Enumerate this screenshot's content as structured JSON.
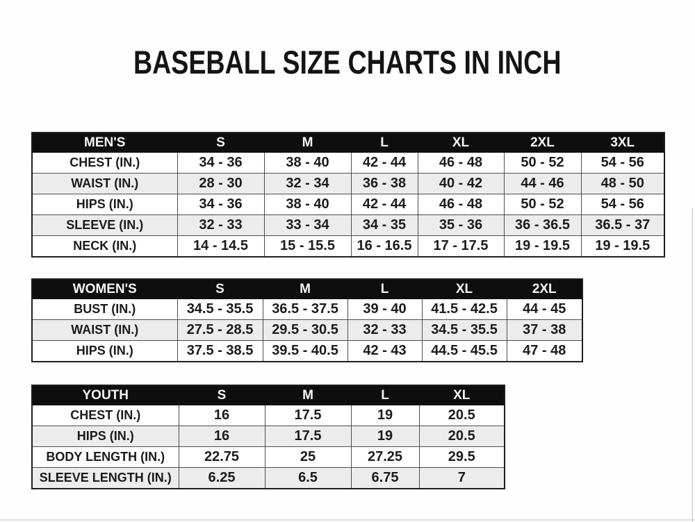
{
  "title": "BASEBALL SIZE CHARTS IN INCH",
  "tables": [
    {
      "id": "mens",
      "group_label": "MEN'S",
      "size_headers": [
        "S",
        "M",
        "L",
        "XL",
        "2XL",
        "3XL"
      ],
      "rows": [
        {
          "label": "CHEST (IN.)",
          "values": [
            "34 - 36",
            "38 - 40",
            "42 - 44",
            "46 - 48",
            "50 - 52",
            "54 - 56"
          ]
        },
        {
          "label": "WAIST (IN.)",
          "values": [
            "28 - 30",
            "32 - 34",
            "36 - 38",
            "40 - 42",
            "44 - 46",
            "48 - 50"
          ]
        },
        {
          "label": "HIPS (IN.)",
          "values": [
            "34 - 36",
            "38 - 40",
            "42 - 44",
            "46 - 48",
            "50 - 52",
            "54 - 56"
          ]
        },
        {
          "label": "SLEEVE (IN.)",
          "values": [
            "32 - 33",
            "33 - 34",
            "34 - 35",
            "35 - 36",
            "36 - 36.5",
            "36.5 - 37"
          ]
        },
        {
          "label": "NECK (IN.)",
          "values": [
            "14 - 14.5",
            "15 - 15.5",
            "16 - 16.5",
            "17 - 17.5",
            "19 - 19.5",
            "19 - 19.5"
          ]
        }
      ]
    },
    {
      "id": "womens",
      "group_label": "WOMEN'S",
      "size_headers": [
        "S",
        "M",
        "L",
        "XL",
        "2XL"
      ],
      "rows": [
        {
          "label": "BUST (IN.)",
          "values": [
            "34.5 - 35.5",
            "36.5 - 37.5",
            "39 - 40",
            "41.5 - 42.5",
            "44 - 45"
          ]
        },
        {
          "label": "WAIST (IN.)",
          "values": [
            "27.5 - 28.5",
            "29.5 - 30.5",
            "32 - 33",
            "34.5 - 35.5",
            "37 - 38"
          ]
        },
        {
          "label": "HIPS (IN.)",
          "values": [
            "37.5 - 38.5",
            "39.5 - 40.5",
            "42 - 43",
            "44.5 - 45.5",
            "47 - 48"
          ]
        }
      ]
    },
    {
      "id": "youth",
      "group_label": "YOUTH",
      "size_headers": [
        "S",
        "M",
        "L",
        "XL"
      ],
      "rows": [
        {
          "label": "CHEST (IN.)",
          "values": [
            "16",
            "17.5",
            "19",
            "20.5"
          ]
        },
        {
          "label": "HIPS (IN.)",
          "values": [
            "16",
            "17.5",
            "19",
            "20.5"
          ]
        },
        {
          "label": "BODY LENGTH (IN.)",
          "values": [
            "22.75",
            "25",
            "27.25",
            "29.5"
          ]
        },
        {
          "label": "SLEEVE LENGTH (IN.)",
          "values": [
            "6.25",
            "6.5",
            "6.75",
            "7"
          ]
        }
      ]
    }
  ]
}
